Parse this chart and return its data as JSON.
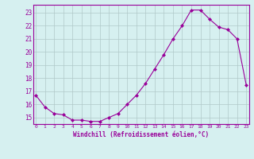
{
  "x": [
    0,
    1,
    2,
    3,
    4,
    5,
    6,
    7,
    8,
    9,
    10,
    11,
    12,
    13,
    14,
    15,
    16,
    17,
    18,
    19,
    20,
    21,
    22,
    23
  ],
  "y": [
    16.7,
    15.8,
    15.3,
    15.2,
    14.8,
    14.8,
    14.7,
    14.7,
    15.0,
    15.3,
    16.0,
    16.7,
    17.6,
    18.7,
    19.8,
    21.0,
    22.0,
    23.2,
    23.2,
    22.5,
    21.9,
    21.7,
    21.0,
    17.5
  ],
  "line_color": "#990099",
  "marker": "D",
  "marker_size": 2,
  "bg_color": "#d6f0f0",
  "grid_color": "#b0c8c8",
  "xlabel": "Windchill (Refroidissement éolien,°C)",
  "xlabel_color": "#990099",
  "ytick_labels": [
    "15",
    "16",
    "17",
    "18",
    "19",
    "20",
    "21",
    "22",
    "23"
  ],
  "ytick_vals": [
    15,
    16,
    17,
    18,
    19,
    20,
    21,
    22,
    23
  ],
  "xtick_labels": [
    "0",
    "1",
    "2",
    "3",
    "4",
    "5",
    "6",
    "7",
    "8",
    "9",
    "10",
    "11",
    "12",
    "13",
    "14",
    "15",
    "16",
    "17",
    "18",
    "19",
    "20",
    "21",
    "22",
    "23"
  ],
  "xtick_vals": [
    0,
    1,
    2,
    3,
    4,
    5,
    6,
    7,
    8,
    9,
    10,
    11,
    12,
    13,
    14,
    15,
    16,
    17,
    18,
    19,
    20,
    21,
    22,
    23
  ],
  "ylim": [
    14.5,
    23.6
  ],
  "xlim": [
    -0.3,
    23.3
  ]
}
